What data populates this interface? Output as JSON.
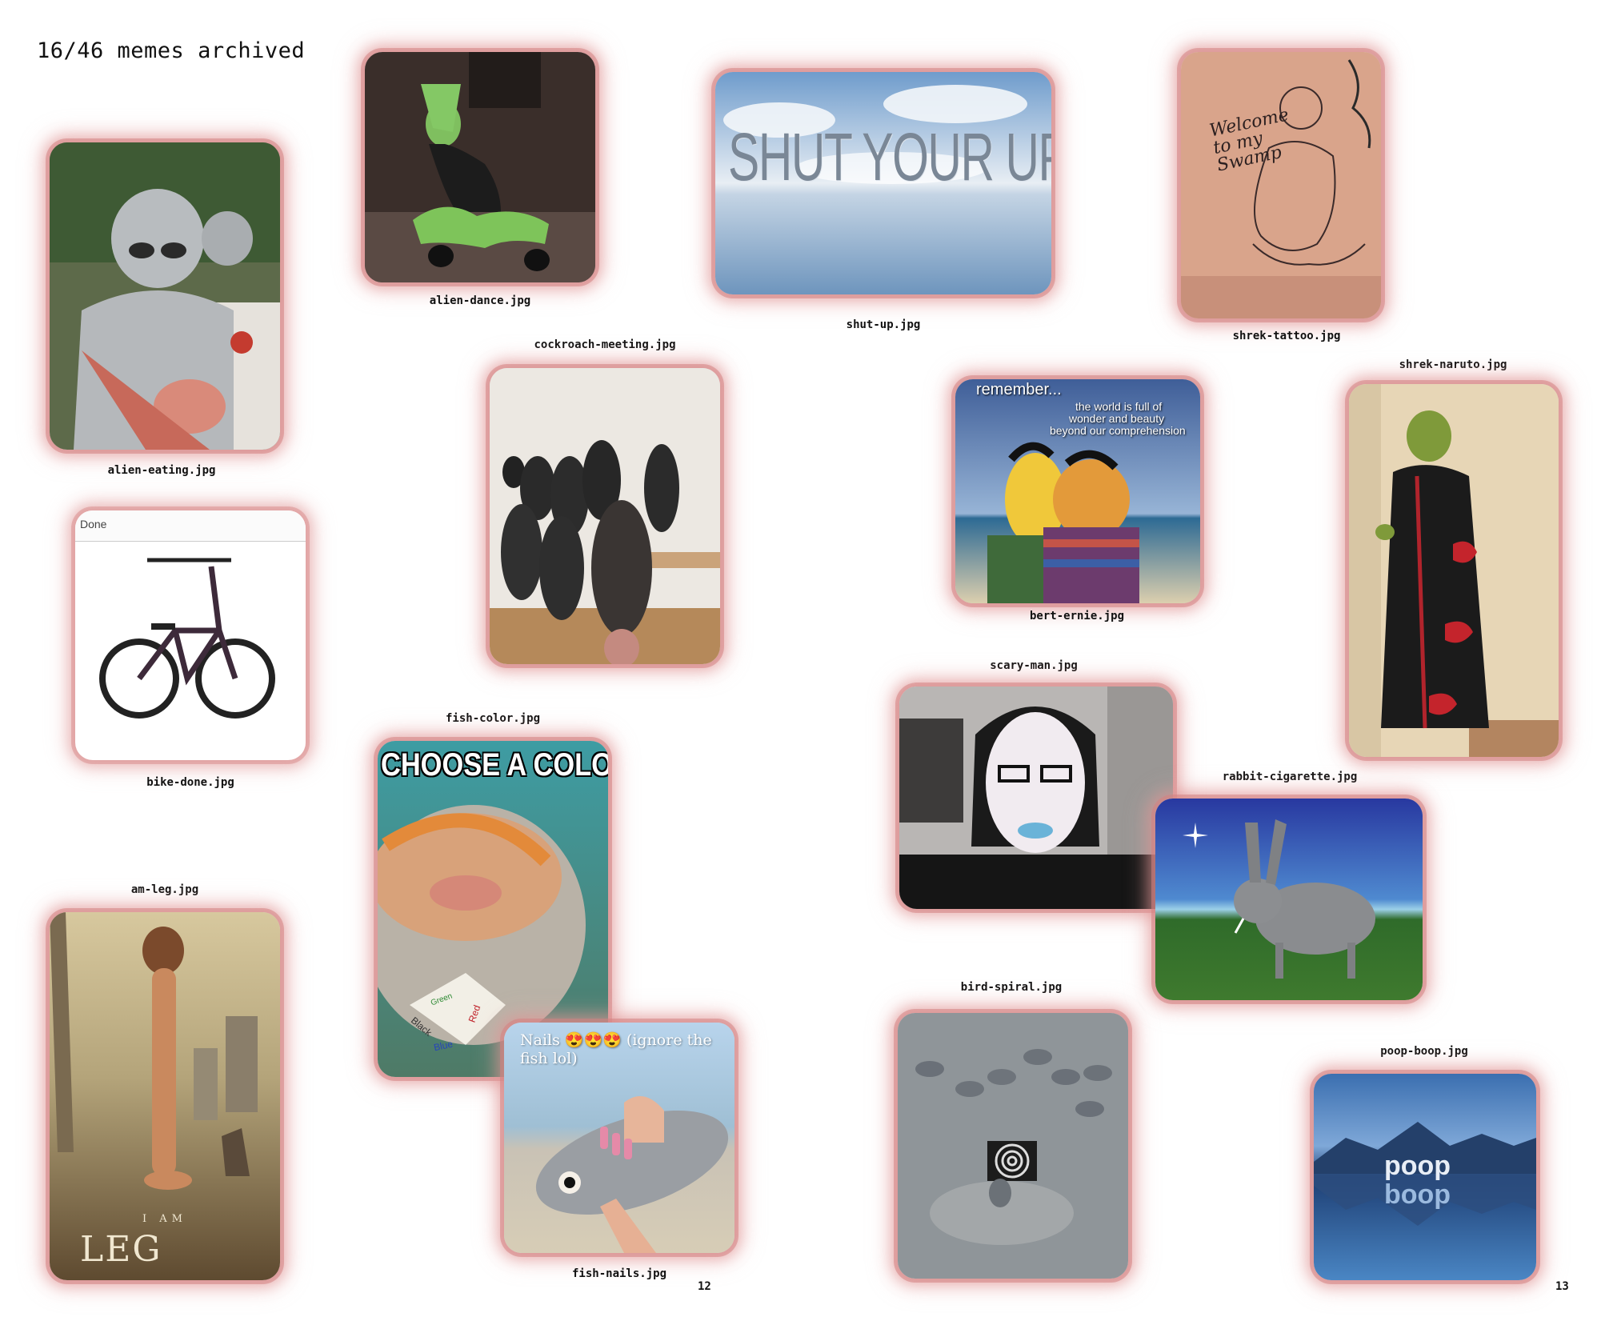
{
  "header": {
    "title": "16/46 memes archived"
  },
  "memes": [
    {
      "file": "alien-eating.jpg"
    },
    {
      "file": "alien-dance.jpg"
    },
    {
      "file": "shut-up.jpg",
      "overlay": "SHUT YOUR UP"
    },
    {
      "file": "shrek-tattoo.jpg",
      "overlay": "Welcome to my Swamp"
    },
    {
      "file": "cockroach-meeting.jpg"
    },
    {
      "file": "bert-ernie.jpg",
      "overlay_title": "remember...",
      "overlay_text": [
        "the world is full of",
        "wonder and beauty",
        "beyond our comprehension"
      ]
    },
    {
      "file": "shrek-naruto.jpg"
    },
    {
      "file": "bike-done.jpg",
      "overlay": "Done"
    },
    {
      "file": "scary-man.jpg"
    },
    {
      "file": "fish-color.jpg",
      "overlay": "CHOOSE A COLOR",
      "fortune_words": [
        "Black",
        "Blue",
        "Red",
        "Green"
      ]
    },
    {
      "file": "rabbit-cigarette.jpg"
    },
    {
      "file": "am-leg.jpg",
      "overlay_small": "I AM",
      "overlay": "LEG"
    },
    {
      "file": "fish-nails.jpg",
      "overlay_line1": "Nails 😍😍😍 (ignore the",
      "overlay_line2": "fish lol)"
    },
    {
      "file": "bird-spiral.jpg"
    },
    {
      "file": "poop-boop.jpg",
      "overlay_line1": "poop",
      "overlay_line2": "boop"
    }
  ],
  "pages": {
    "left": "12",
    "right": "13"
  }
}
